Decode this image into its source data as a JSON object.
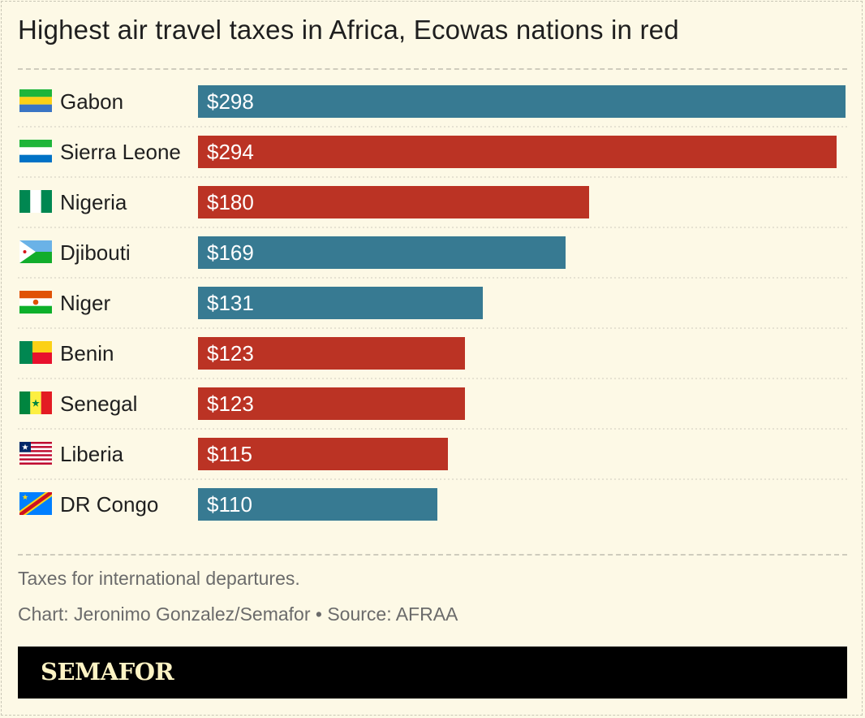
{
  "title": "Highest air travel taxes in Africa, Ecowas nations in red",
  "notes": {
    "description": "Taxes for international departures.",
    "credit": "Chart: Jeronimo Gonzalez/Semafor • Source: AFRAA"
  },
  "footer": {
    "logo": "SEMAFOR"
  },
  "colors": {
    "ecowas": "#bb3324",
    "other": "#377a92",
    "background": "#fdf9e6"
  },
  "chart_data": {
    "type": "bar",
    "orientation": "horizontal",
    "title": "Highest air travel taxes in Africa, Ecowas nations in red",
    "categories": [
      "Gabon",
      "Sierra Leone",
      "Nigeria",
      "Djibouti",
      "Niger",
      "Benin",
      "Senegal",
      "Liberia",
      "DR Congo"
    ],
    "values": [
      298,
      294,
      180,
      169,
      131,
      123,
      123,
      115,
      110
    ],
    "value_labels": [
      "$298",
      "$294",
      "$180",
      "$169",
      "$131",
      "$123",
      "$123",
      "$115",
      "$110"
    ],
    "ecowas": [
      false,
      true,
      true,
      false,
      false,
      true,
      true,
      true,
      false
    ],
    "flag_icons": [
      "gabon-flag-icon",
      "sierra-leone-flag-icon",
      "nigeria-flag-icon",
      "djibouti-flag-icon",
      "niger-flag-icon",
      "benin-flag-icon",
      "senegal-flag-icon",
      "liberia-flag-icon",
      "dr-congo-flag-icon"
    ],
    "xlim": [
      0,
      298
    ],
    "grid": false,
    "legend": "none"
  }
}
